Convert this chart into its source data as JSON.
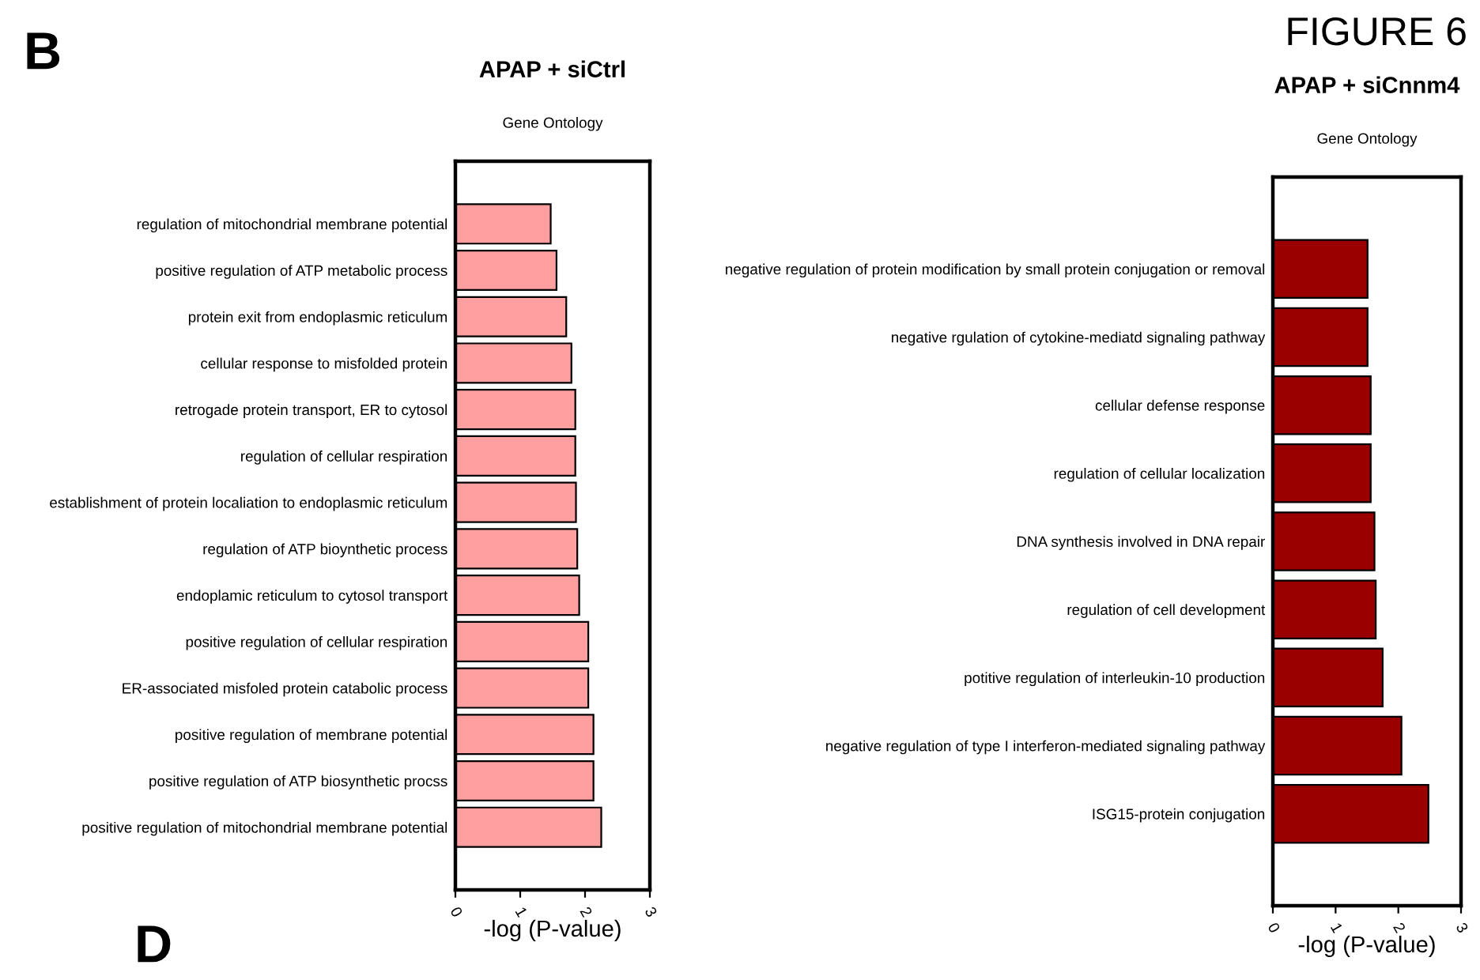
{
  "chart_data": [
    {
      "type": "bar",
      "orientation": "horizontal",
      "title": "APAP + siCtrl",
      "subtitle": "Gene Ontology",
      "xlabel": "-log (P-value)",
      "color": "#ff9f9f",
      "xlim": [
        0,
        3
      ],
      "xticks": [
        0,
        1,
        2,
        3
      ],
      "grid": false,
      "categories": [
        "regulation of mitochondrial membrane potential",
        "positive regulation of ATP metabolic process",
        "protein exit from endoplasmic reticulum",
        "cellular response to misfolded protein",
        "retrogade protein transport, ER to cytosol",
        "regulation of cellular respiration",
        "establishment of protein localiation to endoplasmic reticulum",
        "regulation of ATP bioynthetic process",
        "endoplamic reticulum to cytosol transport",
        "positive regulation of cellular respiration",
        "ER-associated misfoled protein catabolic process",
        "positive regulation of membrane potential",
        "positive regulation of ATP biosynthetic procss",
        "positive regulation of mitochondrial membrane potential"
      ],
      "values": [
        1.47,
        1.56,
        1.71,
        1.79,
        1.85,
        1.85,
        1.86,
        1.88,
        1.91,
        2.05,
        2.05,
        2.13,
        2.13,
        2.25
      ],
      "annotations": [
        "B",
        "D"
      ]
    },
    {
      "type": "bar",
      "orientation": "horizontal",
      "title": "APAP + siCnnm4",
      "subtitle": "Gene Ontology",
      "xlabel": "-log (P-value)",
      "color": "#9b0000",
      "xlim": [
        0,
        3
      ],
      "xticks": [
        0,
        1,
        2,
        3
      ],
      "grid": false,
      "categories": [
        "negative regulation of protein modification by small protein conjugation or removal",
        "negative rgulation of cytokine-mediatd signaling pathway",
        "cellular defense response",
        "regulation of cellular localization",
        "DNA synthesis involved in DNA repair",
        "regulation of cell development",
        "potitive regulation of interleukin-10 production",
        "negative regulation of type I interferon-mediated signaling pathway",
        "ISG15-protein conjugation"
      ],
      "values": [
        1.51,
        1.51,
        1.56,
        1.56,
        1.62,
        1.64,
        1.75,
        2.05,
        2.48
      ],
      "annotations": [
        "FIGURE 6"
      ]
    }
  ]
}
